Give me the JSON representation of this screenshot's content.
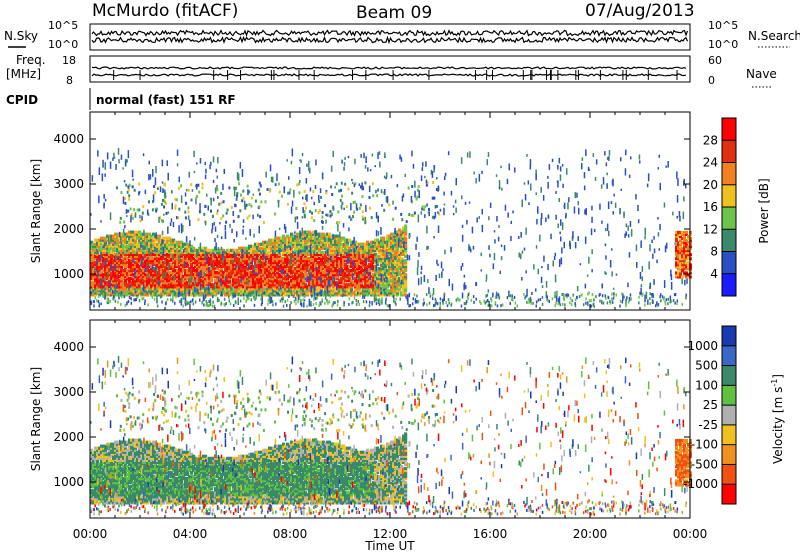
{
  "header": {
    "station": "McMurdo (fitACF)",
    "beam": "Beam 09",
    "date": "07/Aug/2013"
  },
  "noise_panel": {
    "left_label": "N.Sky",
    "right_label": "N.Search",
    "ticks": [
      "10^5",
      "10^0"
    ]
  },
  "freq_panel": {
    "label_line1": "Freq.",
    "label_line2": "[MHz]",
    "left_ticks": [
      "18",
      "8"
    ],
    "right_label": "Nave",
    "right_ticks": [
      "60",
      "0"
    ]
  },
  "cpid": {
    "label": "CPID",
    "value": "normal (fast) 151 RF"
  },
  "x_axis": {
    "label": "Time UT",
    "ticks": [
      "00:00",
      "04:00",
      "08:00",
      "12:00",
      "16:00",
      "20:00",
      "00:00"
    ]
  },
  "chart_data": [
    {
      "type": "heatmap",
      "title": "",
      "xlabel": "Time UT",
      "ylabel": "Slant Range [km]",
      "ylim": [
        200,
        4600
      ],
      "y_ticks": [
        1000,
        2000,
        3000,
        4000
      ],
      "colorbar": {
        "label": "Power [dB]",
        "ticks": [
          "4",
          "8",
          "12",
          "16",
          "20",
          "24",
          "28"
        ],
        "colors": [
          "#1a1aff",
          "#2a4fc4",
          "#3a8a6a",
          "#6cc44a",
          "#f0c020",
          "#f08020",
          "#e03010",
          "#ff0000"
        ]
      }
    },
    {
      "type": "heatmap",
      "title": "",
      "xlabel": "Time UT",
      "ylabel": "Slant Range [km]",
      "ylim": [
        200,
        4600
      ],
      "y_ticks": [
        1000,
        2000,
        3000,
        4000
      ],
      "colorbar": {
        "label": "Velocity [m s^-1]",
        "ticks": [
          "1000",
          "500",
          "100",
          "25",
          "-25",
          "-100",
          "-500",
          "-1000"
        ],
        "colors": [
          "#1a3ab0",
          "#3a68c8",
          "#3a8a6a",
          "#60c040",
          "#b0b0b0",
          "#f0c020",
          "#f09020",
          "#f05010",
          "#ff0000"
        ]
      }
    }
  ]
}
